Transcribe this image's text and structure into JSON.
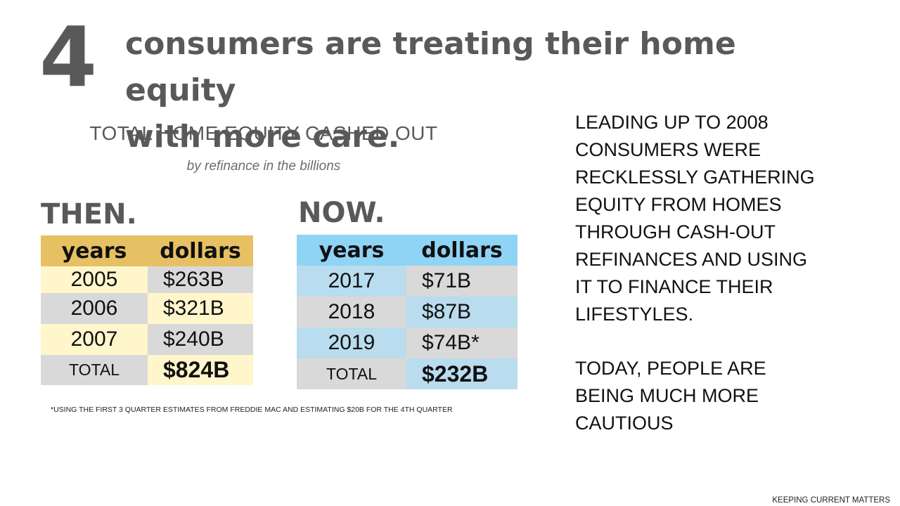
{
  "headline": {
    "number": "4",
    "line1": "consumers are treating their home equity",
    "line2": "with more care."
  },
  "chart_data": {
    "type": "table",
    "title": "TOTAL HOME EQUITY CASHED OUT",
    "subtitle": "by refinance in the billions",
    "then": {
      "label": "THEN.",
      "headers": [
        "years",
        "dollars"
      ],
      "rows": [
        {
          "year": "2005",
          "dollars": "$263B"
        },
        {
          "year": "2006",
          "dollars": "$321B"
        },
        {
          "year": "2007",
          "dollars": "$240B"
        }
      ],
      "total": {
        "label": "TOTAL",
        "dollars": "$824B"
      }
    },
    "now": {
      "label": "NOW.",
      "headers": [
        "years",
        "dollars"
      ],
      "rows": [
        {
          "year": "2017",
          "dollars": "$71B"
        },
        {
          "year": "2018",
          "dollars": "$87B"
        },
        {
          "year": "2019",
          "dollars": "$74B*"
        }
      ],
      "total": {
        "label": "TOTAL",
        "dollars": "$232B"
      }
    },
    "footnote": "*USING THE FIRST 3 QUARTER ESTIMATES FROM FREDDIE MAC AND ESTIMATING $20B FOR THE 4TH QUARTER"
  },
  "sidebar": {
    "paragraph1": [
      "LEADING UP TO 2008",
      "CONSUMERS WERE",
      "RECKLESSLY GATHERING",
      "EQUITY FROM HOMES",
      "THROUGH CASH-OUT",
      "REFINANCES AND USING",
      "IT TO FINANCE THEIR",
      "LIFESTYLES."
    ],
    "paragraph2": [
      "TODAY, PEOPLE ARE",
      "BEING MUCH MORE",
      "CAUTIOUS"
    ]
  },
  "brand": "KEEPING CURRENT MATTERS",
  "colors": {
    "then_header": "#e6c063",
    "then_cream": "#fff6cc",
    "gray": "#d9d9d9",
    "now_header": "#8fd3f5",
    "now_light": "#b9dcee",
    "heading_gray": "#595959"
  }
}
